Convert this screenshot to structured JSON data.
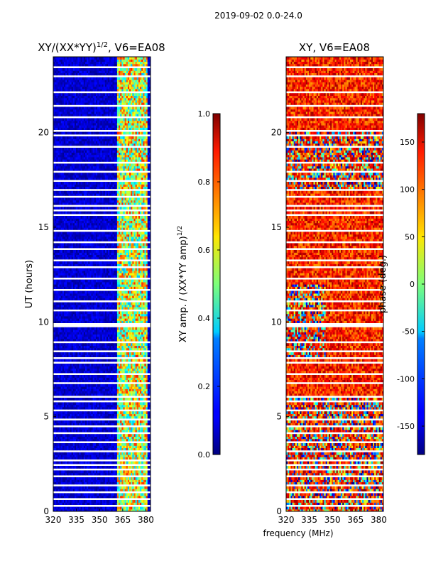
{
  "chart_data": [
    {
      "type": "heatmap",
      "suptitle": "2019-09-02 0.0-24.0",
      "title": "XY/(XX*YY)",
      "title_sup": "1/2",
      "title_suffix": ", V6=EA08",
      "xlabel": "",
      "ylabel": "UT (hours)",
      "xlim": [
        320,
        383
      ],
      "ylim": [
        0,
        24
      ],
      "xticks": [
        "320",
        "335",
        "350",
        "365",
        "380"
      ],
      "yticks": [
        "0",
        "5",
        "10",
        "15",
        "20"
      ],
      "colorbar": {
        "label": "XY amp. / (XX*YY amp)",
        "label_sup": "1/2",
        "range": [
          0.0,
          1.0
        ],
        "ticks": [
          "0.0",
          "0.2",
          "0.4",
          "0.6",
          "0.8",
          "1.0"
        ],
        "colormap": "jet"
      },
      "description": "Normalized XY amplitude: mostly near 0 (dark blue) below ~361 MHz, elevated (0.3-0.9) in 361-381 MHz band; horizontal white gaps mark flagged times."
    },
    {
      "type": "heatmap",
      "title": "XY, V6=EA08",
      "xlabel": "frequency (MHz)",
      "ylabel": "",
      "xlim": [
        320,
        383
      ],
      "ylim": [
        0,
        24
      ],
      "xticks": [
        "320",
        "335",
        "350",
        "365",
        "380"
      ],
      "yticks": [
        "0",
        "5",
        "10",
        "15",
        "20"
      ],
      "colorbar": {
        "label": "phase (deg.)",
        "range": [
          -180,
          180
        ],
        "ticks": [
          "-150",
          "-100",
          "-50",
          "0",
          "50",
          "100",
          "150"
        ],
        "colormap": "jet"
      },
      "description": "XY phase: mostly 90-180 deg (orange/red) with noisy multi-colored regions at early hours (0-6 UT) and around 8-12 and 17-20 UT."
    }
  ]
}
